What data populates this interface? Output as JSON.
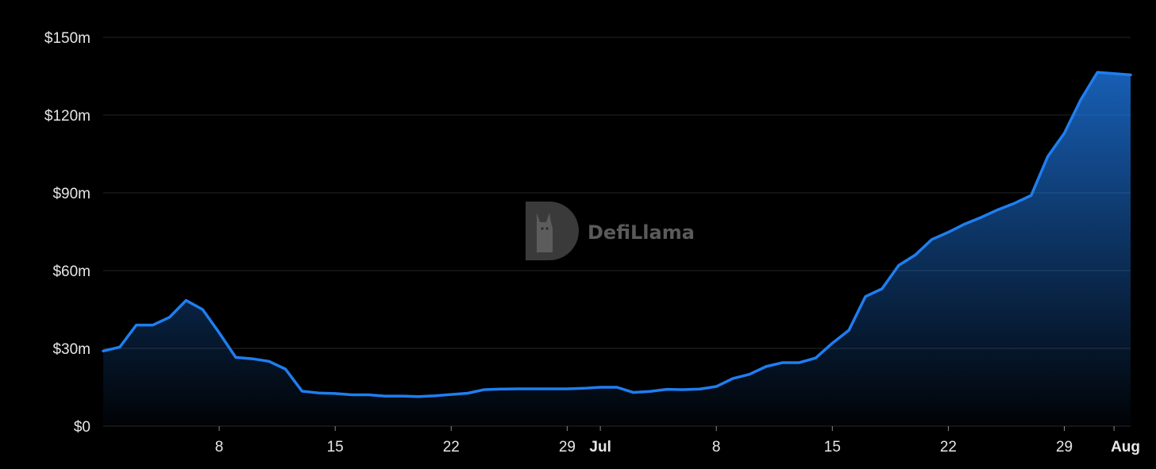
{
  "chart_data": {
    "type": "area",
    "title": "",
    "xlabel": "",
    "ylabel": "",
    "ylim": [
      0,
      150
    ],
    "y_unit": "millions USD",
    "grid": true,
    "line_color": "#1f7ef0",
    "fill_color": "#1f7ef0",
    "y_ticks": [
      {
        "value": 0,
        "label": "$0"
      },
      {
        "value": 30,
        "label": "$30m"
      },
      {
        "value": 60,
        "label": "$60m"
      },
      {
        "value": 90,
        "label": "$90m"
      },
      {
        "value": 120,
        "label": "$120m"
      },
      {
        "value": 150,
        "label": "$150m"
      }
    ],
    "x_ticks": [
      {
        "date": "06-08",
        "label": "8",
        "bold": false
      },
      {
        "date": "06-15",
        "label": "15",
        "bold": false
      },
      {
        "date": "06-22",
        "label": "22",
        "bold": false
      },
      {
        "date": "06-29",
        "label": "29",
        "bold": false
      },
      {
        "date": "07-01",
        "label": "Jul",
        "bold": true
      },
      {
        "date": "07-08",
        "label": "8",
        "bold": false
      },
      {
        "date": "07-15",
        "label": "15",
        "bold": false
      },
      {
        "date": "07-22",
        "label": "22",
        "bold": false
      },
      {
        "date": "07-29",
        "label": "29",
        "bold": false
      },
      {
        "date": "08-01",
        "label": "Aug",
        "bold": true
      }
    ],
    "series": [
      {
        "x": [
          "06-01",
          "06-02",
          "06-03",
          "06-04",
          "06-05",
          "06-06",
          "06-07",
          "06-08",
          "06-09",
          "06-10",
          "06-11",
          "06-12",
          "06-13",
          "06-14",
          "06-15",
          "06-16",
          "06-17",
          "06-18",
          "06-19",
          "06-20",
          "06-21",
          "06-22",
          "06-23",
          "06-24",
          "06-25",
          "06-26",
          "06-27",
          "06-28",
          "06-29",
          "06-30",
          "07-01",
          "07-02",
          "07-03",
          "07-04",
          "07-05",
          "07-06",
          "07-07",
          "07-08",
          "07-09",
          "07-10",
          "07-11",
          "07-12",
          "07-13",
          "07-14",
          "07-15",
          "07-16",
          "07-17",
          "07-18",
          "07-19",
          "07-20",
          "07-21",
          "07-22",
          "07-23",
          "07-24",
          "07-25",
          "07-26",
          "07-27",
          "07-28",
          "07-29",
          "07-30",
          "07-31",
          "08-01",
          "08-02"
        ],
        "values": [
          29,
          30.5,
          39,
          39,
          42,
          48.5,
          45,
          36,
          26.5,
          26,
          25,
          22,
          13.5,
          12.8,
          12.6,
          12.1,
          12.1,
          11.6,
          11.6,
          11.4,
          11.7,
          12.2,
          12.7,
          14.1,
          14.3,
          14.4,
          14.4,
          14.4,
          14.4,
          14.6,
          15,
          15,
          13,
          13.4,
          14.2,
          14.1,
          14.3,
          15.3,
          18.4,
          20,
          23,
          24.5,
          24.5,
          26.3,
          32,
          37,
          50,
          53,
          62,
          66,
          72,
          74.8,
          78,
          80.6,
          83.5,
          86,
          89,
          104,
          113,
          126,
          136.5,
          136,
          135.5
        ]
      }
    ]
  },
  "watermark": {
    "text": "DefiLlama",
    "logo": "defillama-logo-icon"
  }
}
